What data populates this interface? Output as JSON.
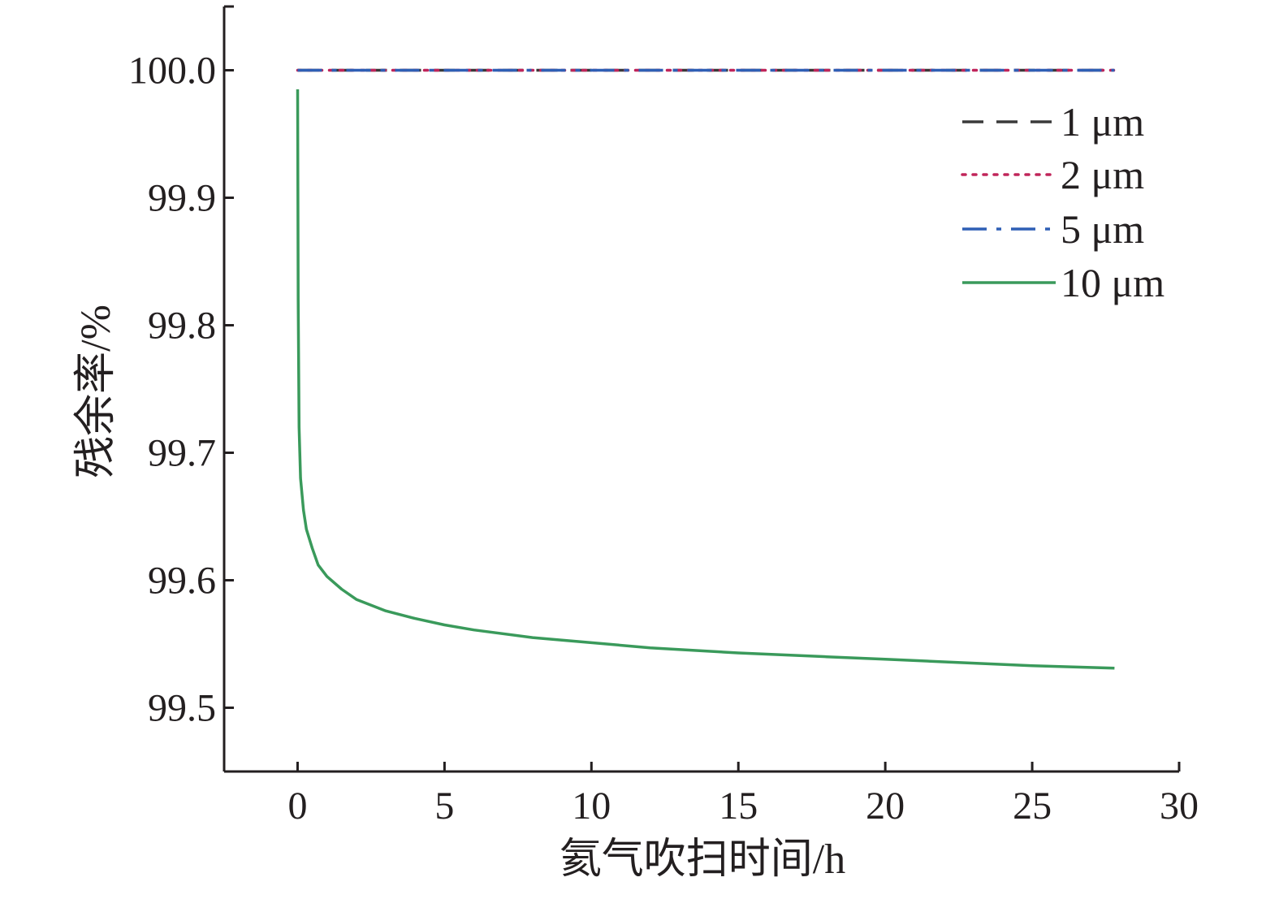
{
  "chart_data": {
    "type": "line",
    "title": "",
    "xlabel": "氦气吹扫时间/h",
    "ylabel": "残余率/%",
    "xlim": [
      -2.5,
      30
    ],
    "ylim": [
      99.45,
      100.05
    ],
    "xticks": [
      0,
      5,
      10,
      15,
      20,
      25,
      30
    ],
    "xtick_labels": [
      "0",
      "5",
      "10",
      "15",
      "20",
      "25",
      "30"
    ],
    "yticks": [
      99.5,
      99.6,
      99.7,
      99.8,
      99.9,
      100.0
    ],
    "ytick_labels": [
      "99.5",
      "99.6",
      "99.7",
      "99.8",
      "99.9",
      "100.0"
    ],
    "grid": false,
    "legend_position": "top-right",
    "series": [
      {
        "name": "1 μm",
        "color": "#3a3a3a",
        "style": "dashed",
        "x": [
          0,
          5,
          10,
          15,
          20,
          25,
          27.8
        ],
        "y": [
          100.0,
          100.0,
          100.0,
          100.0,
          100.0,
          100.0,
          100.0
        ]
      },
      {
        "name": "2 μm",
        "color": "#c0255a",
        "style": "dotted",
        "x": [
          0,
          5,
          10,
          15,
          20,
          25,
          27.8
        ],
        "y": [
          100.0,
          100.0,
          100.0,
          100.0,
          100.0,
          100.0,
          100.0
        ]
      },
      {
        "name": "5 μm",
        "color": "#2f5fb5",
        "style": "dashdot",
        "x": [
          0,
          5,
          10,
          15,
          20,
          25,
          27.8
        ],
        "y": [
          100.0,
          100.0,
          100.0,
          100.0,
          100.0,
          100.0,
          100.0
        ]
      },
      {
        "name": "10 μm",
        "color": "#3a9a5b",
        "style": "solid",
        "x": [
          0,
          0.02,
          0.05,
          0.1,
          0.2,
          0.3,
          0.5,
          0.7,
          1,
          1.5,
          2,
          3,
          4,
          5,
          6,
          8,
          10,
          12,
          15,
          18,
          20,
          22,
          25,
          27.8
        ],
        "y": [
          99.985,
          99.82,
          99.72,
          99.68,
          99.655,
          99.64,
          99.625,
          99.612,
          99.603,
          99.593,
          99.585,
          99.576,
          99.57,
          99.565,
          99.561,
          99.555,
          99.551,
          99.547,
          99.543,
          99.54,
          99.538,
          99.536,
          99.533,
          99.531
        ]
      }
    ]
  }
}
